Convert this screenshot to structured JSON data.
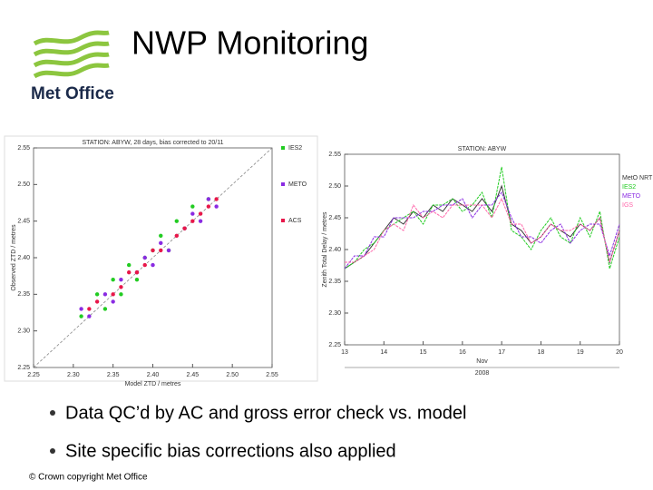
{
  "header": {
    "title": "NWP Monitoring",
    "logo_text": "Met Office"
  },
  "chart_data": [
    {
      "type": "scatter",
      "title": "STATION: ABYW, 28 days, bias corrected to 20/11",
      "x_label": "Model ZTD / metres",
      "y_label": "Observed ZTD / metres",
      "xlim": [
        2.25,
        2.55
      ],
      "ylim": [
        2.25,
        2.55
      ],
      "xticks": [
        2.25,
        {
          "value": 2.3,
          "label": "2.30"
        },
        2.35,
        {
          "value": 2.4,
          "label": "2.40"
        },
        2.45,
        {
          "value": 2.5,
          "label": "2.50"
        },
        2.55
      ],
      "yticks": [
        2.25,
        {
          "value": 2.3,
          "label": "2.30"
        },
        2.35,
        {
          "value": 2.4,
          "label": "2.40"
        },
        2.45,
        {
          "value": 2.5,
          "label": "2.50"
        },
        2.55
      ],
      "series": [
        {
          "name": "IES2",
          "color": "#22cc22",
          "x": [
            2.31,
            2.33,
            2.34,
            2.35,
            2.36,
            2.37,
            2.38,
            2.39,
            2.4,
            2.41,
            2.42,
            2.43,
            2.44,
            2.45,
            2.47
          ],
          "values": [
            2.32,
            2.35,
            2.33,
            2.37,
            2.35,
            2.39,
            2.37,
            2.4,
            2.41,
            2.43,
            2.41,
            2.45,
            2.44,
            2.47,
            2.48
          ]
        },
        {
          "name": "METO",
          "color": "#8a2be2",
          "x": [
            2.31,
            2.32,
            2.34,
            2.35,
            2.36,
            2.38,
            2.39,
            2.4,
            2.41,
            2.42,
            2.44,
            2.45,
            2.46,
            2.47,
            2.48
          ],
          "values": [
            2.33,
            2.32,
            2.35,
            2.34,
            2.37,
            2.38,
            2.4,
            2.39,
            2.42,
            2.41,
            2.44,
            2.46,
            2.45,
            2.48,
            2.47
          ]
        },
        {
          "name": "ACS",
          "color": "#e8174a",
          "x": [
            2.32,
            2.33,
            2.35,
            2.36,
            2.37,
            2.38,
            2.39,
            2.4,
            2.41,
            2.43,
            2.44,
            2.45,
            2.46,
            2.47,
            2.48
          ],
          "values": [
            2.33,
            2.34,
            2.35,
            2.36,
            2.38,
            2.38,
            2.39,
            2.41,
            2.41,
            2.43,
            2.44,
            2.45,
            2.46,
            2.47,
            2.48
          ]
        }
      ]
    },
    {
      "type": "line",
      "title": "STATION: ABYW",
      "y_label": "Zenith Total Delay / metres",
      "x_label": "Nov",
      "x_sublabel": "2008",
      "xlim": [
        13,
        20
      ],
      "ylim": [
        2.25,
        2.55
      ],
      "xticks": [
        13,
        14,
        15,
        16,
        17,
        18,
        19,
        20
      ],
      "yticks": [
        2.25,
        {
          "value": 2.3,
          "label": "2.30"
        },
        2.35,
        {
          "value": 2.4,
          "label": "2.40"
        },
        2.45,
        {
          "value": 2.5,
          "label": "2.50"
        },
        2.55
      ],
      "x": [
        13,
        13.25,
        13.5,
        13.75,
        14,
        14.25,
        14.5,
        14.75,
        15,
        15.25,
        15.5,
        15.75,
        16,
        16.25,
        16.5,
        16.75,
        17,
        17.25,
        17.5,
        17.75,
        18,
        18.25,
        18.5,
        18.75,
        19,
        19.25,
        19.5,
        19.75,
        20
      ],
      "series": [
        {
          "name": "MetO NRT",
          "color": "#333333",
          "values": [
            2.37,
            2.38,
            2.39,
            2.41,
            2.43,
            2.45,
            2.44,
            2.46,
            2.45,
            2.47,
            2.46,
            2.48,
            2.47,
            2.46,
            2.48,
            2.46,
            2.5,
            2.44,
            2.43,
            2.41,
            2.42,
            2.44,
            2.43,
            2.42,
            2.44,
            2.43,
            2.45,
            2.38,
            2.43
          ]
        },
        {
          "name": "IES2",
          "color": "#22cc22",
          "values": [
            2.37,
            2.38,
            2.4,
            2.41,
            2.43,
            2.44,
            2.45,
            2.46,
            2.44,
            2.47,
            2.47,
            2.48,
            2.46,
            2.47,
            2.49,
            2.45,
            2.53,
            2.43,
            2.42,
            2.4,
            2.43,
            2.45,
            2.42,
            2.41,
            2.45,
            2.42,
            2.46,
            2.37,
            2.42
          ]
        },
        {
          "name": "METO",
          "color": "#8a2be2",
          "values": [
            2.37,
            2.39,
            2.39,
            2.42,
            2.42,
            2.45,
            2.45,
            2.45,
            2.46,
            2.46,
            2.47,
            2.47,
            2.48,
            2.45,
            2.47,
            2.47,
            2.49,
            2.45,
            2.42,
            2.42,
            2.41,
            2.43,
            2.44,
            2.41,
            2.43,
            2.44,
            2.44,
            2.39,
            2.44
          ]
        },
        {
          "name": "IGS",
          "color": "#ff66aa",
          "values": [
            2.38,
            2.38,
            2.39,
            2.4,
            2.43,
            2.44,
            2.43,
            2.47,
            2.45,
            2.46,
            2.45,
            2.47,
            2.47,
            2.47,
            2.47,
            2.45,
            2.48,
            2.44,
            2.44,
            2.41,
            2.42,
            2.44,
            2.43,
            2.43,
            2.44,
            2.43,
            2.45,
            2.38,
            2.43
          ]
        }
      ]
    }
  ],
  "bullets": [
    "Data QC’d by AC and gross error check vs. model",
    "Site specific bias corrections also applied"
  ],
  "footer": "© Crown copyright   Met Office"
}
